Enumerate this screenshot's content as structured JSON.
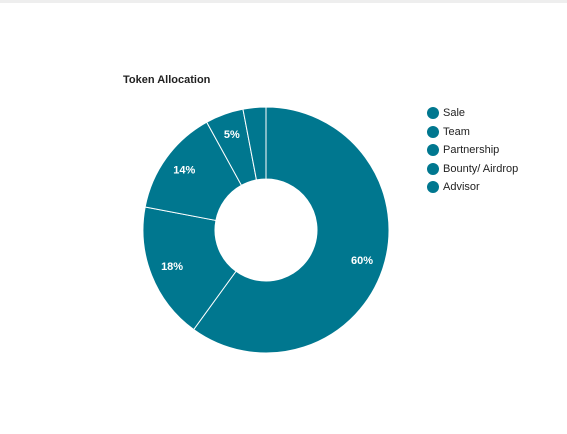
{
  "chart_data": {
    "type": "pie",
    "donut": true,
    "title": "Token Allocation",
    "labels": [
      "Sale",
      "Team",
      "Partnership",
      "Bounty/ Airdrop",
      "Advisor"
    ],
    "values": [
      60,
      18,
      14,
      5,
      3
    ],
    "value_labels": [
      "60%",
      "18%",
      "14%",
      "5%",
      ""
    ],
    "colors": [
      "#00778f",
      "#00778f",
      "#00778f",
      "#00778f",
      "#00778f"
    ],
    "separator_color": "#ffffff",
    "legend_position": "right"
  }
}
